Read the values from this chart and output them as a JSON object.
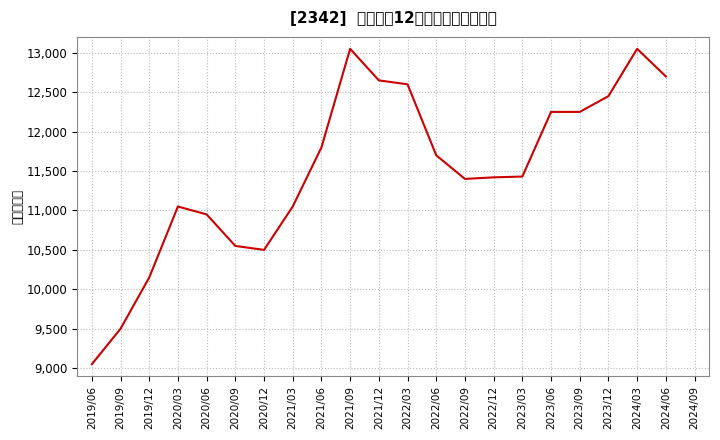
{
  "title": "[2342]  売上高の12か月移動合計の推移",
  "ylabel": "（百万円）",
  "line_color": "#cc0000",
  "background_color": "#ffffff",
  "plot_bg_color": "#ffffff",
  "grid_color": "#bbbbbb",
  "ylim": [
    8900,
    13200
  ],
  "yticks": [
    9000,
    9500,
    10000,
    10500,
    11000,
    11500,
    12000,
    12500,
    13000
  ],
  "dates": [
    "2019/06",
    "2019/09",
    "2019/12",
    "2020/03",
    "2020/06",
    "2020/09",
    "2020/12",
    "2021/03",
    "2021/06",
    "2021/09",
    "2021/12",
    "2022/03",
    "2022/06",
    "2022/09",
    "2022/12",
    "2023/03",
    "2023/06",
    "2023/09",
    "2023/12",
    "2024/03",
    "2024/06",
    "2024/09"
  ],
  "values": [
    9050,
    9500,
    10150,
    11050,
    10950,
    10550,
    10500,
    11050,
    11800,
    13050,
    12650,
    12600,
    11700,
    11400,
    11420,
    11430,
    12250,
    12250,
    12450,
    13050,
    12700,
    null
  ]
}
